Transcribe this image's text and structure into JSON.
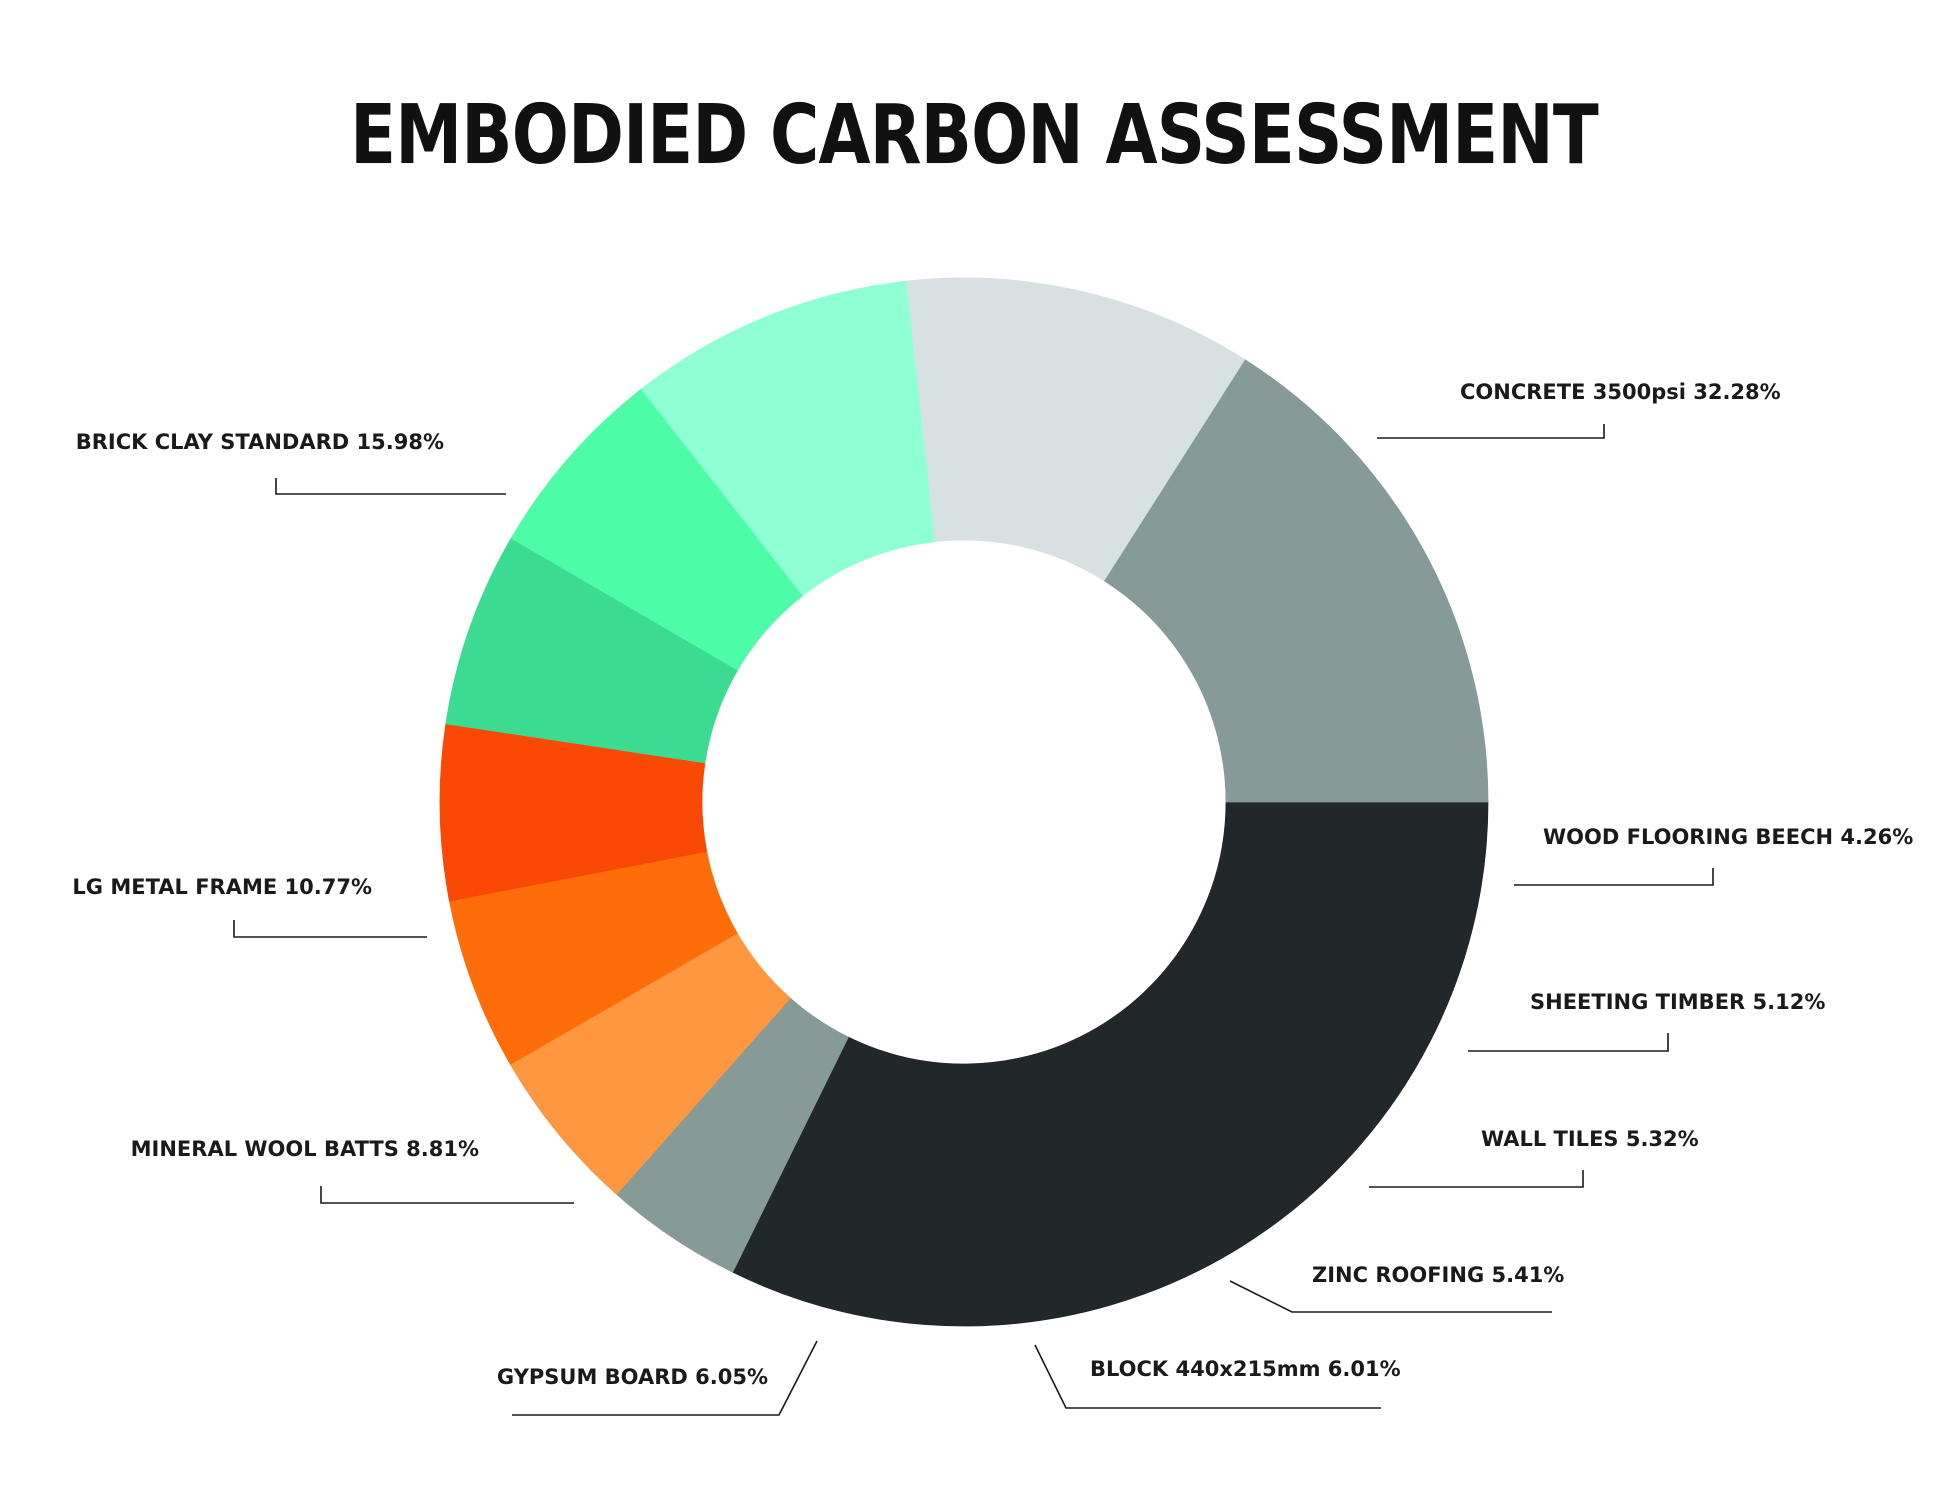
{
  "chart_data": {
    "type": "pie",
    "style": "donut",
    "title": "EMBODIED CARBON ASSESSMENT",
    "slices": [
      {
        "label": "CONCRETE 3500psi 32.28%",
        "value": 32.28,
        "color": "#22272a"
      },
      {
        "label": "WOOD FLOORING BEECH 4.26%",
        "value": 4.26,
        "color": "#869a98"
      },
      {
        "label": "SHEETING TIMBER 5.12%",
        "value": 5.12,
        "color": "#ff9640"
      },
      {
        "label": "WALL TILES 5.32%",
        "value": 5.32,
        "color": "#ff6c0a"
      },
      {
        "label": "ZINC ROOFING 5.41%",
        "value": 5.41,
        "color": "#fa4905"
      },
      {
        "label": "BLOCK 440x215mm 6.01%",
        "value": 6.01,
        "color": "#3bdc92"
      },
      {
        "label": "GYPSUM BOARD 6.05%",
        "value": 6.05,
        "color": "#4dfca6"
      },
      {
        "label": "MINERAL WOOL BATTS 8.81%",
        "value": 8.81,
        "color": "#8fffd4"
      },
      {
        "label": "LG METAL FRAME 10.77%",
        "value": 10.77,
        "color": "#d8e1e2"
      },
      {
        "label": "BRICK CLAY STANDARD 15.98%",
        "value": 15.98,
        "color": "#869a98"
      }
    ],
    "legend": "none"
  }
}
